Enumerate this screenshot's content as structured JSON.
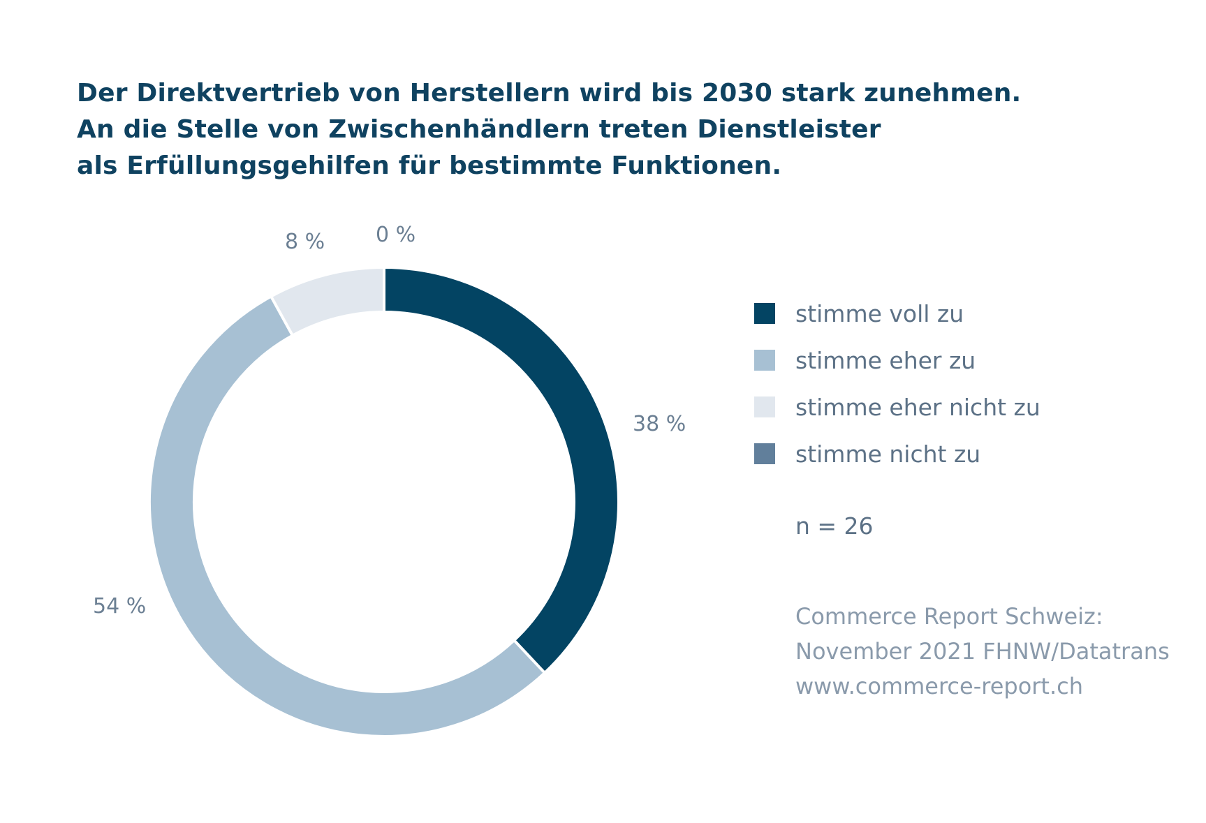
{
  "chart_data": {
    "type": "pie",
    "donut": true,
    "title_lines": [
      "Der Direktvertrieb von Herstellern wird bis 2030 stark zunehmen.",
      "An die Stelle von Zwischenhändlern treten Dienstleister",
      "als Erfüllungsgehilfen für bestimmte Funktionen."
    ],
    "slices": [
      {
        "name": "stimme voll zu",
        "value": 38,
        "label": "38 %",
        "color": "#034463"
      },
      {
        "name": "stimme eher zu",
        "value": 54,
        "label": "54 %",
        "color": "#a7c0d3"
      },
      {
        "name": "stimme eher nicht zu",
        "value": 8,
        "label": "8 %",
        "color": "#e1e7ee"
      },
      {
        "name": "stimme nicht zu",
        "value": 0,
        "label": "0 %",
        "color": "#617f9b"
      }
    ],
    "legend_position": "right",
    "sample_size": "n = 26",
    "source_lines": [
      "Commerce Report Schweiz:",
      "November 2021 FHNW/Datatrans",
      "www.commerce-report.ch"
    ]
  }
}
